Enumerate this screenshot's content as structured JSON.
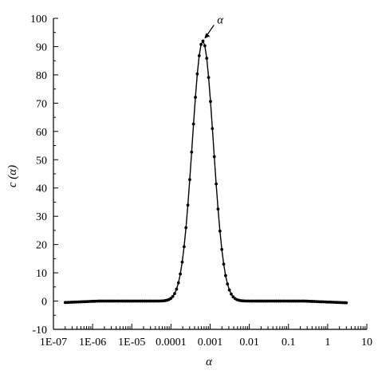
{
  "chart_data": {
    "type": "line",
    "title": "",
    "xlabel": "α",
    "ylabel": "c (α)",
    "xscale": "log",
    "xlim": [
      1e-07,
      10
    ],
    "ylim": [
      -10,
      100
    ],
    "grid": false,
    "legend": "none",
    "x_tick_labels": [
      "1E-07",
      "1E-06",
      "1E-05",
      "0.0001",
      "0.001",
      "0.01",
      "0.1",
      "1",
      "10"
    ],
    "y_tick_labels": [
      "-10",
      "0",
      "10",
      "20",
      "30",
      "40",
      "50",
      "60",
      "70",
      "80",
      "90",
      "100"
    ],
    "annotation": {
      "text": "α",
      "x": 0.00065,
      "y": 92
    },
    "marker": "dot",
    "line_color": "#000000",
    "peak": {
      "x": 0.00065,
      "y": 92
    },
    "curve": {
      "baseline_left": -0.5,
      "baseline_right": -0.6,
      "x_min": 2e-07,
      "x_max": 3,
      "peak_log10_sigma": 0.27
    },
    "series": [
      {
        "x": [
          2e-07,
          1e-06,
          1e-05,
          0.0001,
          0.0002,
          0.0003,
          0.0004,
          0.0005,
          0.00065,
          0.0008,
          0.001,
          0.0013,
          0.0016,
          0.002,
          0.0025,
          0.003,
          0.004,
          0.006,
          0.01,
          0.1,
          1,
          3
        ],
        "values": [
          -0.5,
          0,
          0,
          0.3,
          8,
          35,
          62,
          82,
          92,
          86,
          68,
          45,
          27,
          13,
          6,
          2.5,
          1,
          0.2,
          0,
          0,
          -0.2,
          -0.6
        ]
      }
    ]
  }
}
